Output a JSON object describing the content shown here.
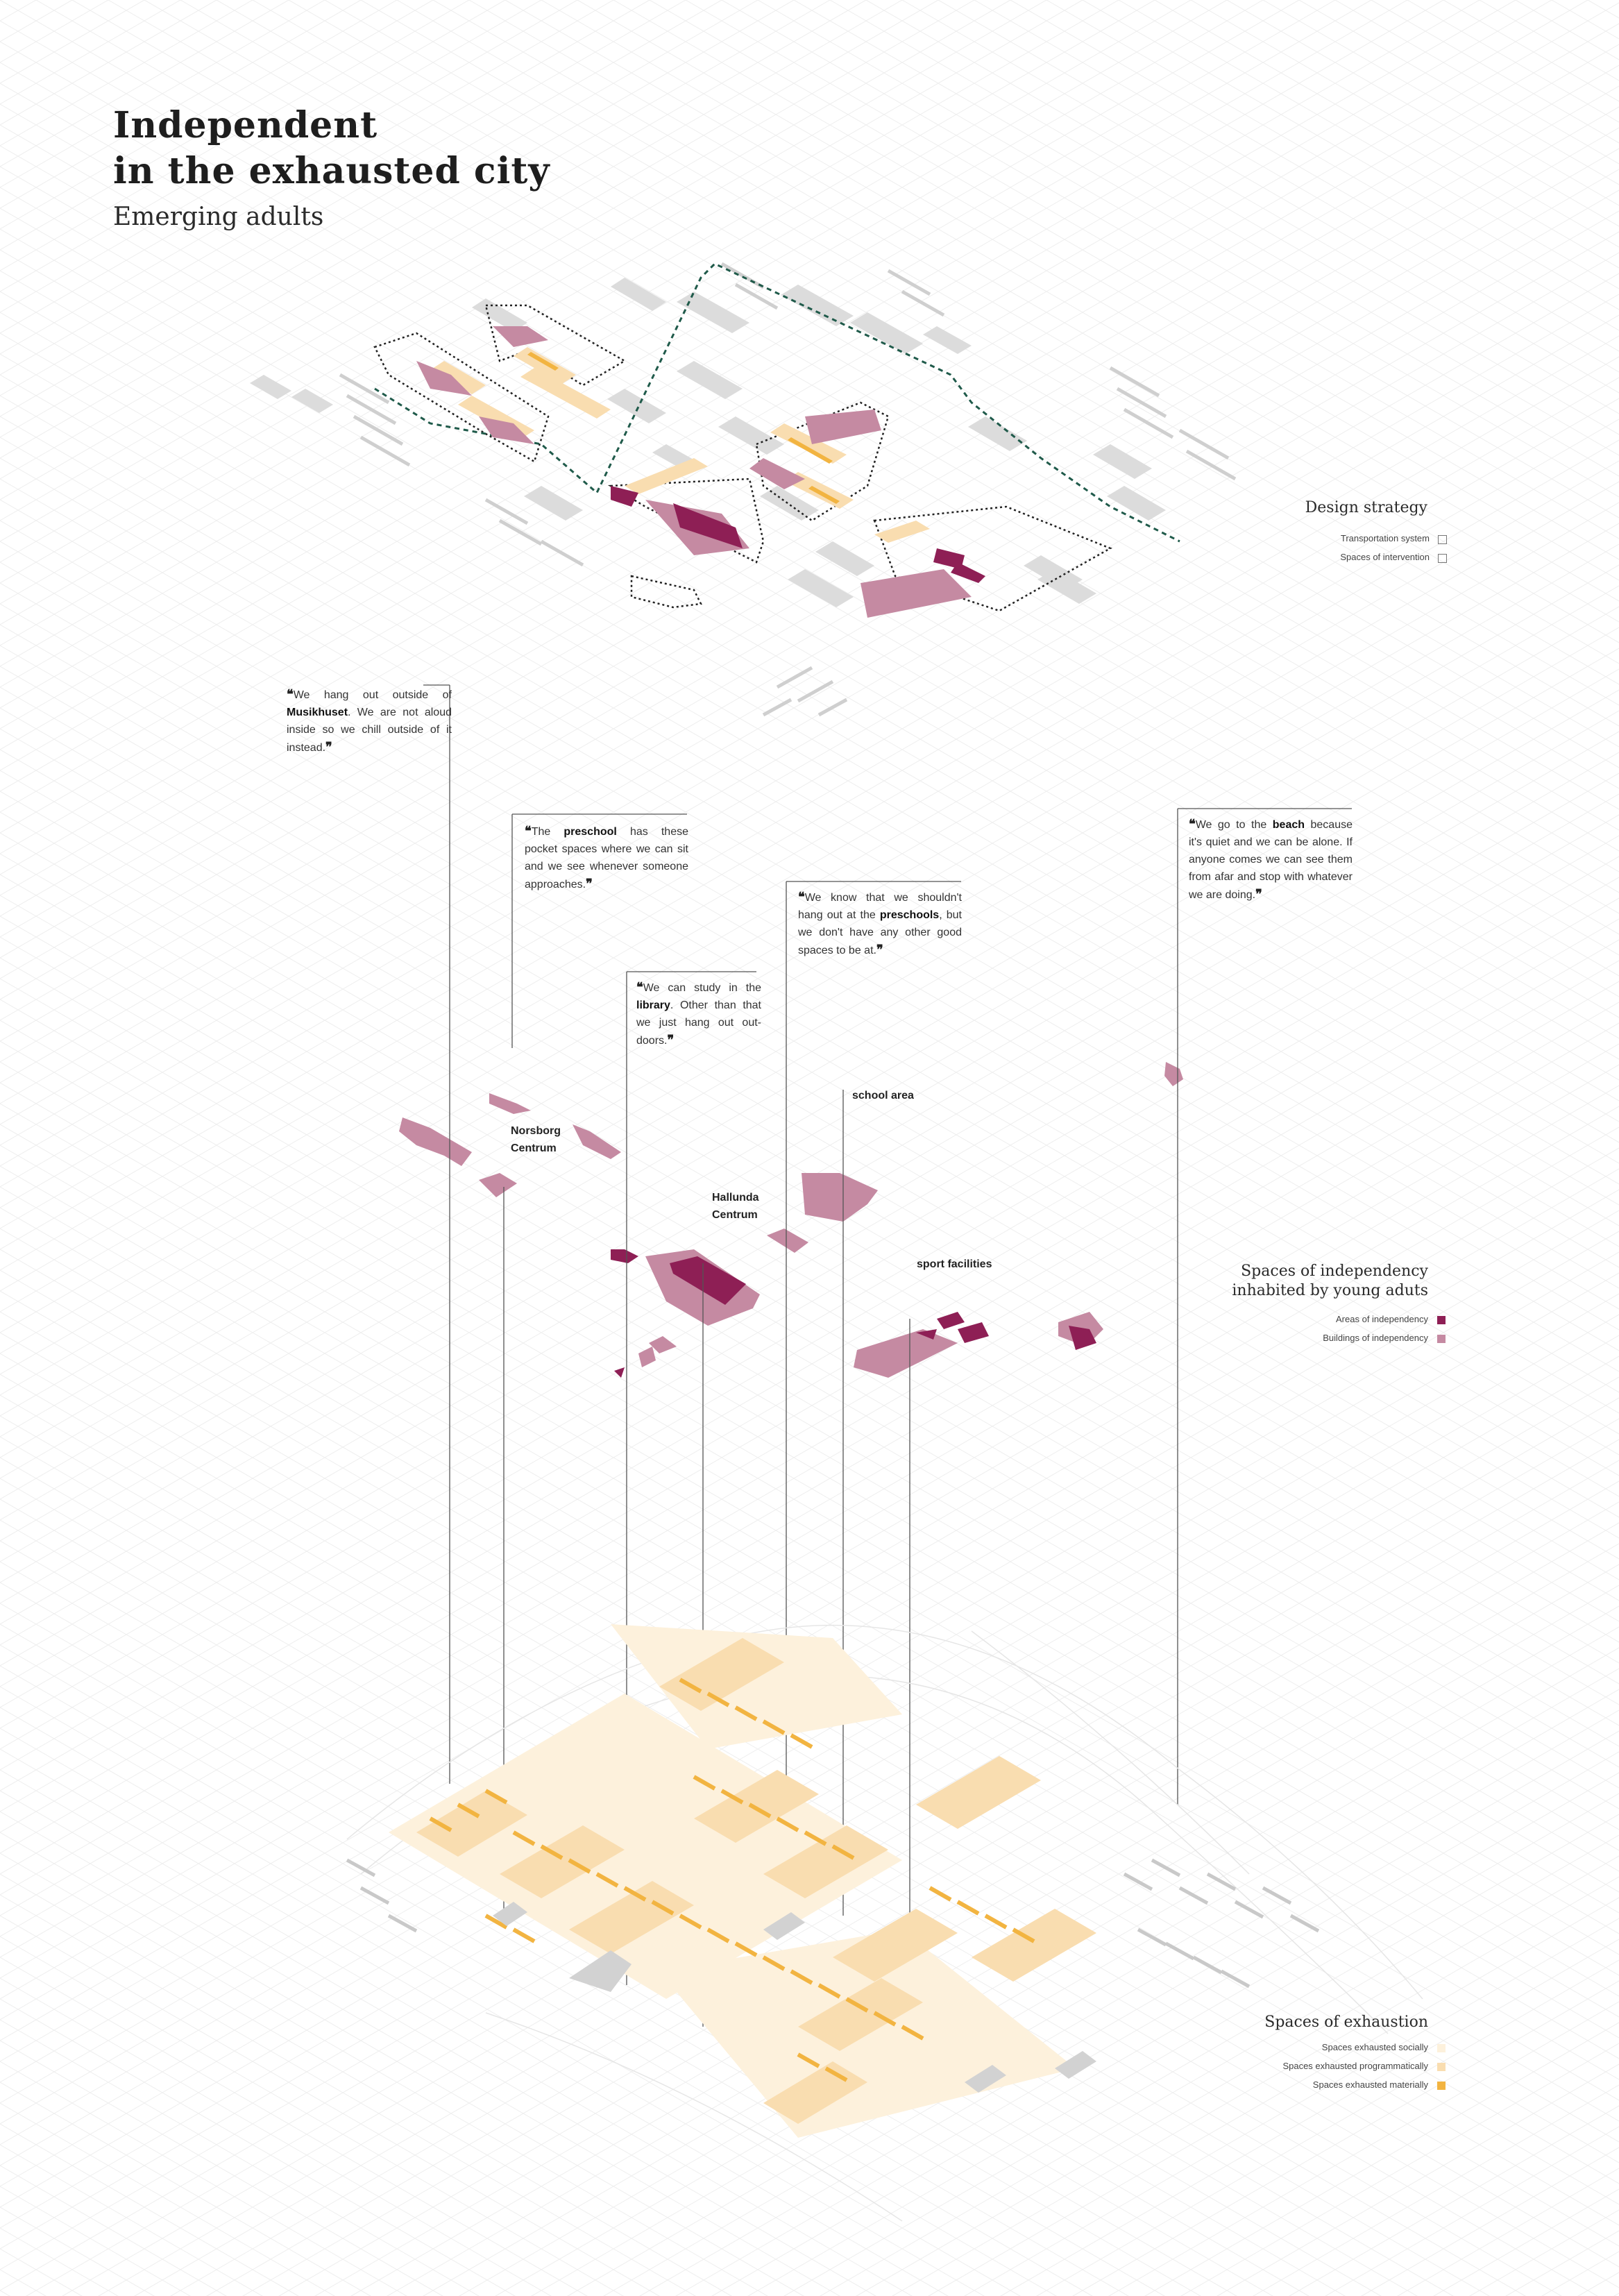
{
  "title": {
    "line1": "Independent",
    "line2": "in the exhausted city"
  },
  "subtitle": "Emerging adults",
  "quotes": [
    {
      "pre": "We hang out outside of ",
      "bold": "Musikhuset",
      "post": ". We are not aloud inside so we chill outside of it instead."
    },
    {
      "pre": "The ",
      "bold": "preschool",
      "post": " has these pocket spaces where we can sit and we see whenever someone approaches."
    },
    {
      "pre": "We can study in the ",
      "bold": "library",
      "post": ". Other than that we just hang out out-doors."
    },
    {
      "pre": "We know that we shouldn't hang out at the ",
      "bold": "preschools",
      "post": ", but we don't have any other good spaces to be at."
    },
    {
      "pre": "We go to the ",
      "bold": "beach",
      "post": " because it's quiet and we can be alone. If anyone comes we can see them from afar and stop with whatever we are doing."
    }
  ],
  "places": {
    "norsborg": {
      "line1": "Norsborg",
      "line2": "Centrum"
    },
    "hallunda": {
      "line1": "Hallunda",
      "line2": "Centrum"
    },
    "school": "school area",
    "sport": "sport facilities"
  },
  "legend_design": {
    "title": "Design strategy",
    "items": [
      "Transportation system",
      "Spaces of intervention"
    ]
  },
  "legend_independency": {
    "title_line1": "Spaces of independency",
    "title_line2": "inhabited by young aduts",
    "items": [
      {
        "label": "Areas of independency",
        "color": "#8e1f55"
      },
      {
        "label": "Buildings of independency",
        "color": "#c58aa2"
      }
    ]
  },
  "legend_exhaustion": {
    "title": "Spaces of exhaustion",
    "items": [
      {
        "label": "Spaces exhausted socially",
        "color": "#fdf1dc"
      },
      {
        "label": "Spaces exhausted programmatically",
        "color": "#f9ddb0"
      },
      {
        "label": "Spaces exhausted materially",
        "color": "#f2b441"
      }
    ]
  },
  "colors": {
    "area": "#8e1f55",
    "building": "#c58aa2",
    "social": "#fdf1dc",
    "program": "#f9ddb0",
    "material": "#f2b441",
    "transport": "#1f5a4a",
    "grey": "#d6d6d6"
  }
}
